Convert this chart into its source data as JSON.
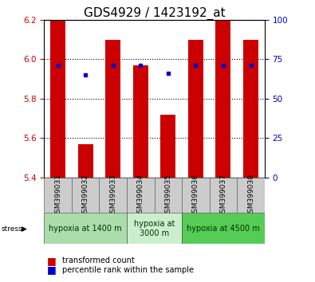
{
  "title": "GDS4929 / 1423192_at",
  "samples": [
    "GSM399031",
    "GSM399032",
    "GSM399033",
    "GSM399034",
    "GSM399035",
    "GSM399036",
    "GSM399037",
    "GSM399038"
  ],
  "bar_tops": [
    6.2,
    5.57,
    6.1,
    5.97,
    5.72,
    6.1,
    6.2,
    6.1
  ],
  "bar_bottom": 5.4,
  "blue_dot_y": [
    5.97,
    5.92,
    5.97,
    5.97,
    5.93,
    5.97,
    5.97,
    5.97
  ],
  "ylim": [
    5.4,
    6.2
  ],
  "yticks": [
    5.4,
    5.6,
    5.8,
    6.0,
    6.2
  ],
  "y2ticks": [
    0,
    25,
    50,
    75,
    100
  ],
  "bar_color": "#cc0000",
  "dot_color": "#0000cc",
  "bar_width": 0.55,
  "groups": [
    {
      "label": "hypoxia at 1400 m",
      "start": 0,
      "end": 3,
      "color": "#aaddaa"
    },
    {
      "label": "hypoxia at\n3000 m",
      "start": 3,
      "end": 5,
      "color": "#cceecc"
    },
    {
      "label": "hypoxia at 4500 m",
      "start": 5,
      "end": 8,
      "color": "#55cc55"
    }
  ],
  "xlabel_color": "#cc0000",
  "y2label_color": "#0000cc",
  "legend_items": [
    {
      "color": "#cc0000",
      "label": "transformed count"
    },
    {
      "color": "#0000cc",
      "label": "percentile rank within the sample"
    }
  ],
  "title_fontsize": 11,
  "tick_fontsize": 7.5,
  "sample_fontsize": 6.5,
  "group_fontsize": 7,
  "legend_fontsize": 7
}
